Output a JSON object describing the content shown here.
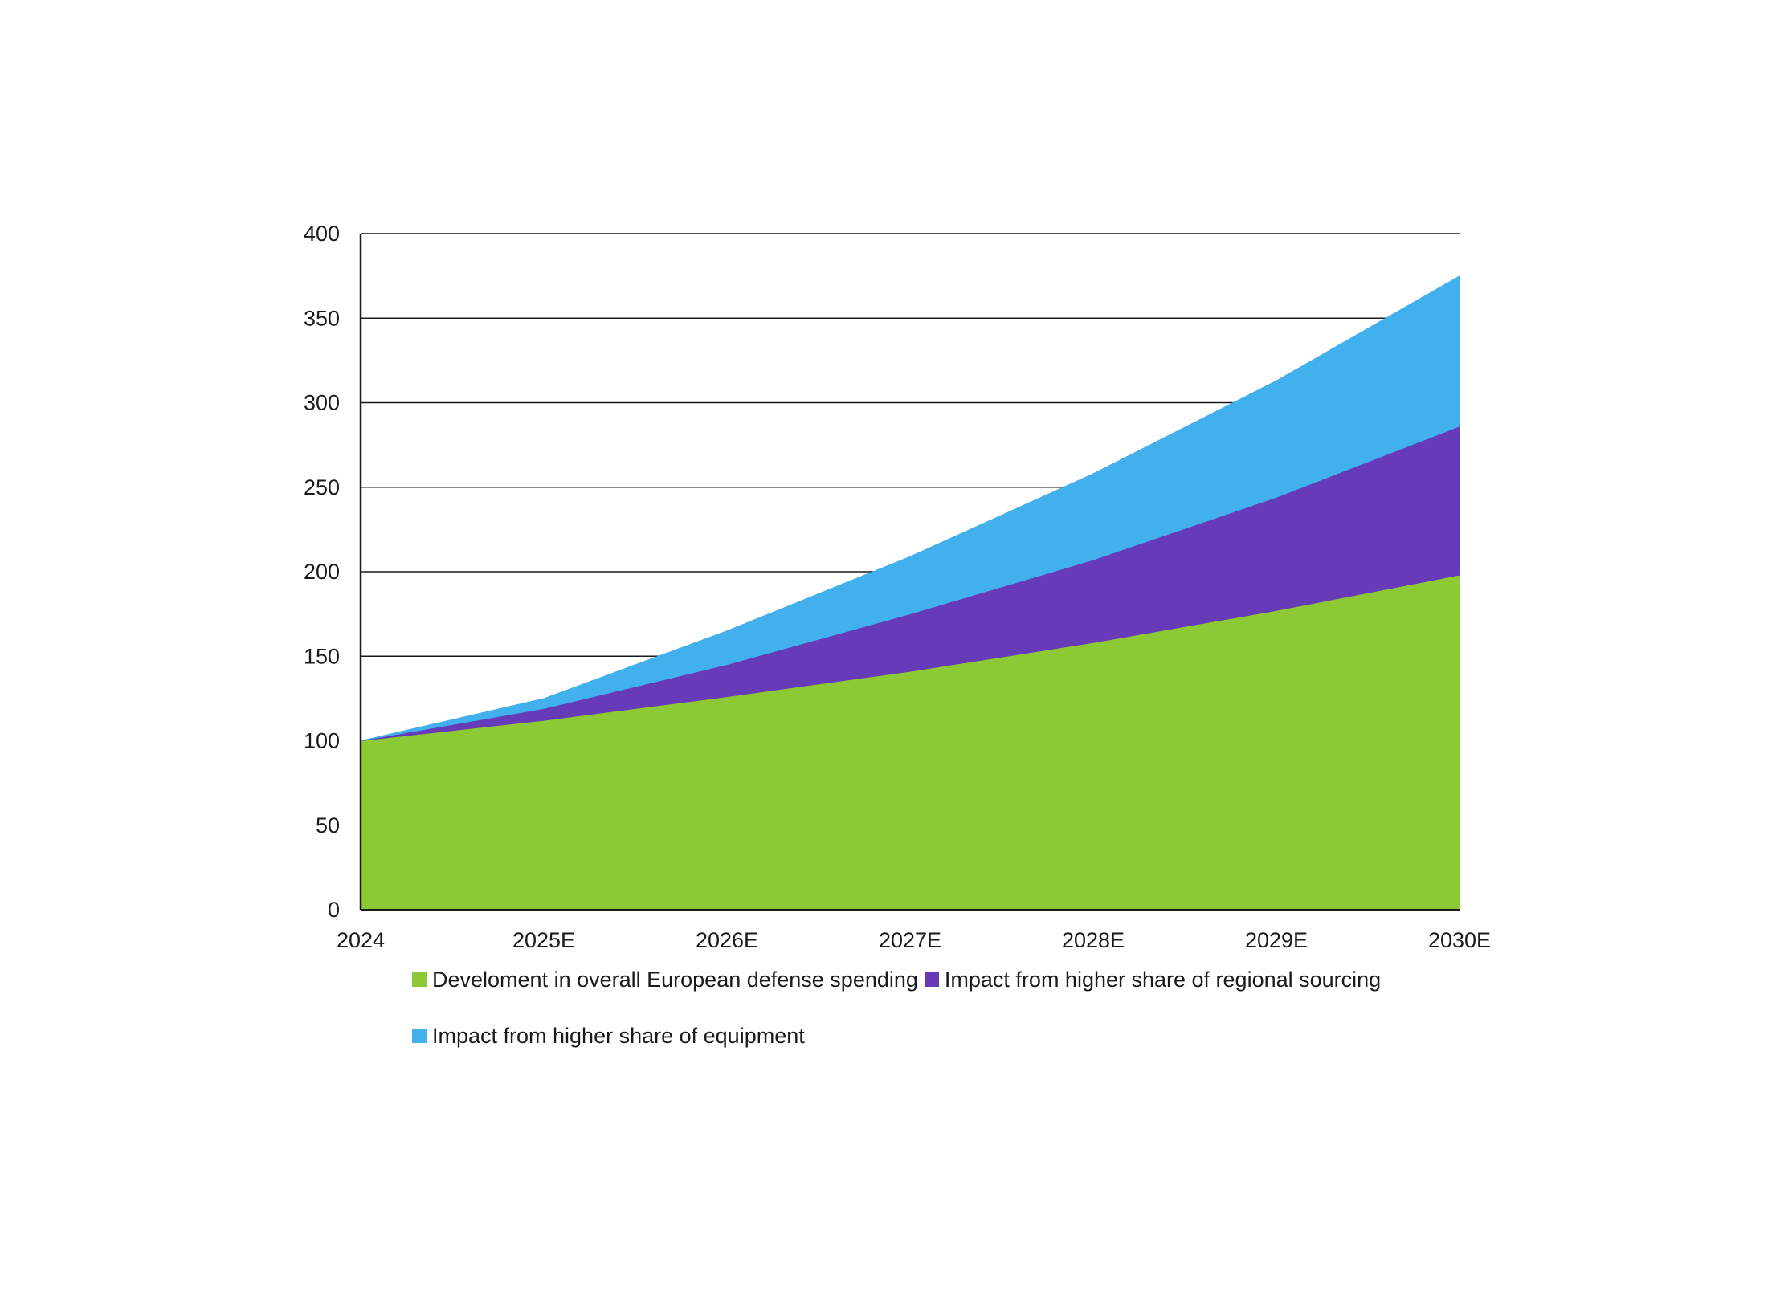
{
  "chart_data": {
    "type": "area",
    "stacked": true,
    "title": "",
    "xlabel": "",
    "ylabel": "",
    "categories": [
      "2024",
      "2025E",
      "2026E",
      "2027E",
      "2028E",
      "2029E",
      "2030E"
    ],
    "ylim": [
      0,
      400
    ],
    "yticks": [
      0,
      50,
      100,
      150,
      200,
      250,
      300,
      350,
      400
    ],
    "grid": "horizontal",
    "legend": "bottom",
    "series": [
      {
        "name": "Develoment in overall European defense spending",
        "color": "#8cc935",
        "values": [
          100,
          112,
          126,
          141,
          158,
          177,
          198
        ]
      },
      {
        "name": "Impact from higher share of regional sourcing",
        "color": "#673ab7",
        "values": [
          0,
          7,
          19,
          34,
          49,
          67,
          88
        ]
      },
      {
        "name": "Impact from higher share of equipment",
        "color": "#41b0ed",
        "values": [
          0,
          6,
          20,
          34,
          51,
          69,
          89
        ]
      }
    ]
  }
}
